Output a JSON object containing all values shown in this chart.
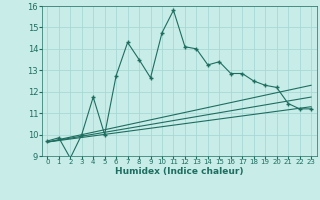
{
  "title": "",
  "xlabel": "Humidex (Indice chaleur)",
  "background_color": "#c8ece8",
  "grid_color": "#a8d8d4",
  "line_color": "#1e6e60",
  "xlim": [
    -0.5,
    23.5
  ],
  "ylim": [
    9,
    16
  ],
  "x_ticks": [
    0,
    1,
    2,
    3,
    4,
    5,
    6,
    7,
    8,
    9,
    10,
    11,
    12,
    13,
    14,
    15,
    16,
    17,
    18,
    19,
    20,
    21,
    22,
    23
  ],
  "y_ticks": [
    9,
    10,
    11,
    12,
    13,
    14,
    15,
    16
  ],
  "main_x": [
    0,
    1,
    2,
    3,
    4,
    5,
    6,
    7,
    8,
    9,
    10,
    11,
    12,
    13,
    14,
    15,
    16,
    17,
    18,
    19,
    20,
    21,
    22,
    23
  ],
  "main_y": [
    9.7,
    9.85,
    8.9,
    10.0,
    11.75,
    10.0,
    12.75,
    14.3,
    13.5,
    12.65,
    14.75,
    15.8,
    14.1,
    14.0,
    13.25,
    13.4,
    12.85,
    12.85,
    12.5,
    12.3,
    12.2,
    11.45,
    11.2,
    11.2
  ],
  "line1_x": [
    0,
    23
  ],
  "line1_y": [
    9.65,
    12.3
  ],
  "line2_x": [
    0,
    23
  ],
  "line2_y": [
    9.65,
    11.75
  ],
  "line3_x": [
    0,
    23
  ],
  "line3_y": [
    9.65,
    11.3
  ]
}
